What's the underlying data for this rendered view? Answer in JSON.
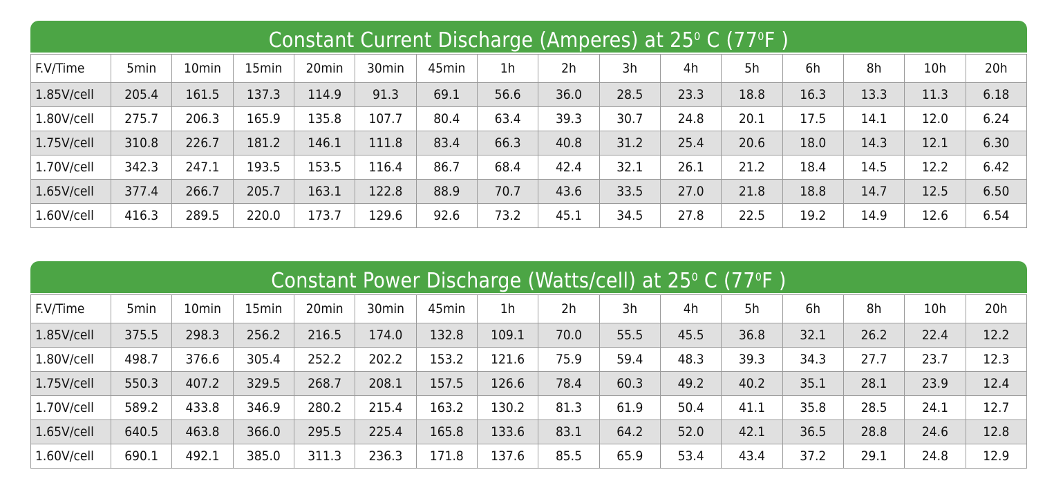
{
  "tables": [
    {
      "title": [
        "Constant Current Discharge (Amperes) at 25",
        "0",
        " C (77",
        "0",
        "F )"
      ],
      "header": [
        "F.V/Time",
        "5min",
        "10min",
        "15min",
        "20min",
        "30min",
        "45min",
        "1h",
        "2h",
        "3h",
        "4h",
        "5h",
        "6h",
        "8h",
        "10h",
        "20h"
      ],
      "rows": [
        [
          "1.85V/cell",
          "205.4",
          "161.5",
          "137.3",
          "114.9",
          "91.3",
          "69.1",
          "56.6",
          "36.0",
          "28.5",
          "23.3",
          "18.8",
          "16.3",
          "13.3",
          "11.3",
          "6.18"
        ],
        [
          "1.80V/cell",
          "275.7",
          "206.3",
          "165.9",
          "135.8",
          "107.7",
          "80.4",
          "63.4",
          "39.3",
          "30.7",
          "24.8",
          "20.1",
          "17.5",
          "14.1",
          "12.0",
          "6.24"
        ],
        [
          "1.75V/cell",
          "310.8",
          "226.7",
          "181.2",
          "146.1",
          "111.8",
          "83.4",
          "66.3",
          "40.8",
          "31.2",
          "25.4",
          "20.6",
          "18.0",
          "14.3",
          "12.1",
          "6.30"
        ],
        [
          "1.70V/cell",
          "342.3",
          "247.1",
          "193.5",
          "153.5",
          "116.4",
          "86.7",
          "68.4",
          "42.4",
          "32.1",
          "26.1",
          "21.2",
          "18.4",
          "14.5",
          "12.2",
          "6.42"
        ],
        [
          "1.65V/cell",
          "377.4",
          "266.7",
          "205.7",
          "163.1",
          "122.8",
          "88.9",
          "70.7",
          "43.6",
          "33.5",
          "27.0",
          "21.8",
          "18.8",
          "14.7",
          "12.5",
          "6.50"
        ],
        [
          "1.60V/cell",
          "416.3",
          "289.5",
          "220.0",
          "173.7",
          "129.6",
          "92.6",
          "73.2",
          "45.1",
          "34.5",
          "27.8",
          "22.5",
          "19.2",
          "14.9",
          "12.6",
          "6.54"
        ]
      ]
    },
    {
      "title": [
        "Constant Power Discharge (Watts/cell) at 25",
        "0",
        " C (77",
        "0",
        "F )"
      ],
      "header": [
        "F.V/Time",
        "5min",
        "10min",
        "15min",
        "20min",
        "30min",
        "45min",
        "1h",
        "2h",
        "3h",
        "4h",
        "5h",
        "6h",
        "8h",
        "10h",
        "20h"
      ],
      "rows": [
        [
          "1.85V/cell",
          "375.5",
          "298.3",
          "256.2",
          "216.5",
          "174.0",
          "132.8",
          "109.1",
          "70.0",
          "55.5",
          "45.5",
          "36.8",
          "32.1",
          "26.2",
          "22.4",
          "12.2"
        ],
        [
          "1.80V/cell",
          "498.7",
          "376.6",
          "305.4",
          "252.2",
          "202.2",
          "153.2",
          "121.6",
          "75.9",
          "59.4",
          "48.3",
          "39.3",
          "34.3",
          "27.7",
          "23.7",
          "12.3"
        ],
        [
          "1.75V/cell",
          "550.3",
          "407.2",
          "329.5",
          "268.7",
          "208.1",
          "157.5",
          "126.6",
          "78.4",
          "60.3",
          "49.2",
          "40.2",
          "35.1",
          "28.1",
          "23.9",
          "12.4"
        ],
        [
          "1.70V/cell",
          "589.2",
          "433.8",
          "346.9",
          "280.2",
          "215.4",
          "163.2",
          "130.2",
          "81.3",
          "61.9",
          "50.4",
          "41.1",
          "35.8",
          "28.5",
          "24.1",
          "12.7"
        ],
        [
          "1.65V/cell",
          "640.5",
          "463.8",
          "366.0",
          "295.5",
          "225.4",
          "165.8",
          "133.6",
          "83.1",
          "64.2",
          "52.0",
          "42.1",
          "36.5",
          "28.8",
          "24.6",
          "12.8"
        ],
        [
          "1.60V/cell",
          "690.1",
          "492.1",
          "385.0",
          "311.3",
          "236.3",
          "171.8",
          "137.6",
          "85.5",
          "65.9",
          "53.4",
          "43.4",
          "37.2",
          "29.1",
          "24.8",
          "12.9"
        ]
      ]
    }
  ]
}
